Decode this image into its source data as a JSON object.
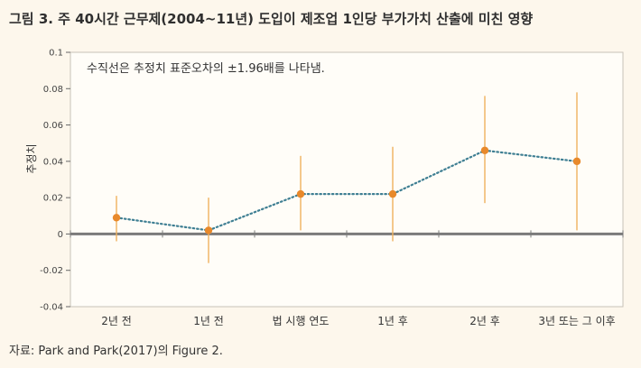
{
  "figure": {
    "title": "그림 3. 주 40시간 근무제(2004~11년) 도입이 제조업 1인당 부가가치 산출에 미친 영향",
    "source": "자료: Park and Park(2017)의 Figure 2."
  },
  "chart_data": {
    "type": "line",
    "categories": [
      "2년 전",
      "1년 전",
      "법 시행 연도",
      "1년 후",
      "2년 후",
      "3년 또는 그 이후"
    ],
    "values": [
      0.009,
      0.002,
      0.022,
      0.022,
      0.046,
      0.04
    ],
    "error_lower": [
      -0.004,
      -0.016,
      0.002,
      -0.004,
      0.017,
      0.002
    ],
    "error_upper": [
      0.021,
      0.02,
      0.043,
      0.048,
      0.076,
      0.078
    ],
    "ylabel": "추정치",
    "ylim": [
      -0.04,
      0.1
    ],
    "yticks": [
      -0.04,
      -0.02,
      0,
      0.02,
      0.04,
      0.06,
      0.08,
      0.1
    ],
    "ytick_labels": [
      "-0.04",
      "-0.02",
      "0",
      "0.02",
      "0.04",
      "0.06",
      "0.08",
      "0.1"
    ],
    "annotation": "수직선은 추정치 표준오차의 ±1.96배를 나타냄.",
    "grid": false,
    "colors": {
      "point": "#e8892b",
      "errorbar": "#f0b25e",
      "line": "#3f7f93",
      "zero_line": "#7a7a7a",
      "plot_bg": "#fffdf8",
      "frame": "#c7c2b8"
    }
  }
}
